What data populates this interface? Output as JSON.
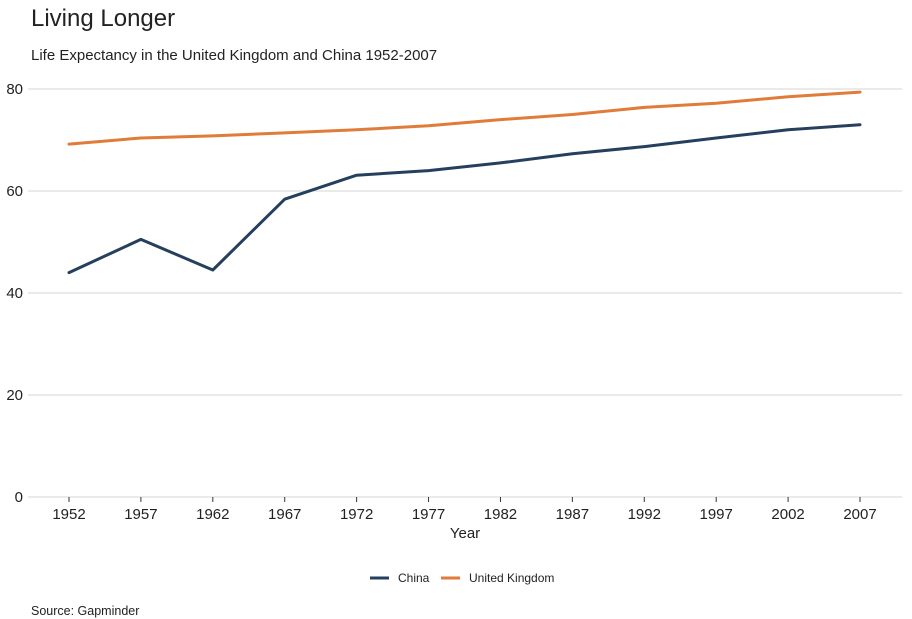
{
  "chart_data": {
    "type": "line",
    "title": "Living Longer",
    "subtitle": "Life Expectancy in the United Kingdom and China 1952-2007",
    "xlabel": "Year",
    "ylabel": "",
    "caption": "Source: Gapminder",
    "x": [
      1952,
      1957,
      1962,
      1967,
      1972,
      1977,
      1982,
      1987,
      1992,
      1997,
      2002,
      2007
    ],
    "x_tick_labels": [
      "1952",
      "1957",
      "1962",
      "1967",
      "1972",
      "1977",
      "1982",
      "1987",
      "1992",
      "1997",
      "2002",
      "2007"
    ],
    "ylim": [
      0,
      80
    ],
    "y_ticks": [
      0,
      20,
      40,
      60,
      80
    ],
    "y_tick_labels": [
      "0",
      "20",
      "40",
      "60",
      "80"
    ],
    "grid": "horizontal",
    "legend_position": "bottom",
    "series": [
      {
        "name": "China",
        "color": "#253f5e",
        "values": [
          44.0,
          50.5,
          44.5,
          58.4,
          63.1,
          64.0,
          65.5,
          67.3,
          68.7,
          70.4,
          72.0,
          73.0
        ]
      },
      {
        "name": "United Kingdom",
        "color": "#e07b39",
        "values": [
          69.2,
          70.4,
          70.8,
          71.4,
          72.0,
          72.8,
          74.0,
          75.0,
          76.4,
          77.2,
          78.5,
          79.4
        ]
      }
    ]
  }
}
